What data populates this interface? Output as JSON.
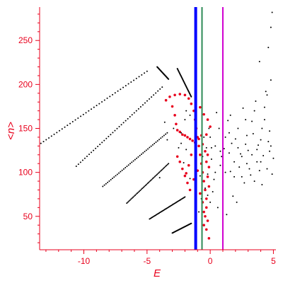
{
  "chart_data": {
    "type": "scatter",
    "title": "",
    "xlabel": "E",
    "ylabel": "<n>",
    "xlim": [
      -13.5,
      5.2
    ],
    "ylim": [
      12,
      288
    ],
    "x_ticks": [
      -10,
      -5,
      0,
      5
    ],
    "y_ticks": [
      50,
      100,
      150,
      200,
      250
    ],
    "grid": false,
    "colors": {
      "axes": "#e8001c",
      "black_points": "#000000",
      "red_points": "#e8001c",
      "line_blue": "#0000ff",
      "line_green": "#2e8b57",
      "line_magenta": "#d000d0"
    },
    "vertical_lines": [
      {
        "x": -1.15,
        "color": "#0000ff"
      },
      {
        "x": -0.65,
        "color": "#2e8b57"
      },
      {
        "x": 1.0,
        "color": "#d000d0"
      }
    ],
    "series": [
      {
        "color": "#000000",
        "kind": "segments",
        "segments": [
          {
            "x0": -13.4,
            "y0": 133,
            "x1": -5.0,
            "y1": 215
          },
          {
            "x0": -10.6,
            "y0": 107,
            "x1": -3.8,
            "y1": 197
          },
          {
            "x0": -8.5,
            "y0": 84,
            "x1": -3.4,
            "y1": 145
          },
          {
            "x0": -6.6,
            "y0": 65,
            "x1": -3.3,
            "y1": 110
          },
          {
            "x0": -4.8,
            "y0": 47,
            "x1": -2.0,
            "y1": 72
          },
          {
            "x0": -3.0,
            "y0": 31,
            "x1": -1.5,
            "y1": 42
          },
          {
            "x0": -4.2,
            "y0": 220,
            "x1": -3.3,
            "y1": 206
          },
          {
            "x0": -2.6,
            "y0": 218,
            "x1": -1.5,
            "y1": 186
          }
        ]
      },
      {
        "color": "#000000",
        "kind": "cloud",
        "points": [
          [
            0.1,
            115
          ],
          [
            0.4,
            130
          ],
          [
            0.8,
            108
          ],
          [
            1.2,
            140
          ],
          [
            1.5,
            122
          ],
          [
            1.9,
            95
          ],
          [
            2.2,
            150
          ],
          [
            2.5,
            118
          ],
          [
            2.8,
            132
          ],
          [
            3.1,
            104
          ],
          [
            3.4,
            144
          ],
          [
            3.7,
            126
          ],
          [
            4.0,
            112
          ],
          [
            4.3,
            160
          ],
          [
            4.6,
            135
          ],
          [
            4.9,
            98
          ],
          [
            0.3,
            92
          ],
          [
            0.7,
            150
          ],
          [
            1.1,
            127
          ],
          [
            1.6,
            101
          ],
          [
            2.0,
            138
          ],
          [
            2.4,
            121
          ],
          [
            2.9,
            110
          ],
          [
            3.3,
            158
          ],
          [
            3.8,
            131
          ],
          [
            4.2,
            119
          ],
          [
            4.7,
            147
          ],
          [
            5.0,
            116
          ],
          [
            0.5,
            168
          ],
          [
            1.4,
            159
          ],
          [
            2.6,
            173
          ],
          [
            3.6,
            181
          ],
          [
            4.4,
            192
          ],
          [
            4.8,
            205
          ],
          [
            3.9,
            226
          ],
          [
            4.6,
            242
          ],
          [
            4.9,
            282
          ],
          [
            4.8,
            265
          ],
          [
            4.5,
            188
          ],
          [
            0.2,
            78
          ],
          [
            1.0,
            84
          ],
          [
            1.8,
            73
          ],
          [
            2.7,
            88
          ],
          [
            3.5,
            90
          ],
          [
            4.1,
            86
          ],
          [
            0.6,
            60
          ],
          [
            1.3,
            52
          ],
          [
            2.1,
            66
          ],
          [
            0.0,
            140
          ],
          [
            0.9,
            118
          ],
          [
            1.7,
            133
          ],
          [
            2.3,
            106
          ],
          [
            3.0,
            125
          ],
          [
            3.2,
            97
          ],
          [
            4.5,
            104
          ],
          [
            0.4,
            100
          ],
          [
            1.5,
            145
          ],
          [
            2.2,
            128
          ],
          [
            2.9,
            142
          ],
          [
            3.7,
            112
          ],
          [
            4.0,
            137
          ],
          [
            4.7,
            124
          ],
          [
            0.8,
            124
          ],
          [
            1.9,
            112
          ],
          [
            3.3,
            120
          ],
          [
            4.1,
            150
          ],
          [
            2.5,
            95
          ],
          [
            1.2,
            100
          ],
          [
            0.1,
            128
          ],
          [
            3.9,
            102
          ],
          [
            4.8,
            130
          ],
          [
            2.8,
            160
          ],
          [
            1.6,
            165
          ],
          [
            3.5,
            170
          ],
          [
            4.3,
            174
          ]
        ]
      },
      {
        "color": "#e8001c",
        "kind": "cloud",
        "points": [
          [
            -3.5,
            182
          ],
          [
            -3.2,
            186
          ],
          [
            -2.8,
            188
          ],
          [
            -2.4,
            189
          ],
          [
            -2.0,
            188
          ],
          [
            -1.7,
            184
          ],
          [
            -1.5,
            178
          ],
          [
            -1.3,
            170
          ],
          [
            -1.2,
            160
          ],
          [
            -1.1,
            150
          ],
          [
            -1.0,
            140
          ],
          [
            -0.9,
            130
          ],
          [
            -0.8,
            120
          ],
          [
            -0.7,
            110
          ],
          [
            -0.6,
            100
          ],
          [
            -0.5,
            90
          ],
          [
            -0.4,
            80
          ],
          [
            -0.3,
            70
          ],
          [
            -0.3,
            60
          ],
          [
            -0.4,
            50
          ],
          [
            -0.5,
            40
          ],
          [
            -3.0,
            175
          ],
          [
            -2.8,
            165
          ],
          [
            -2.7,
            155
          ],
          [
            -2.6,
            148
          ],
          [
            -2.4,
            146
          ],
          [
            -2.2,
            143
          ],
          [
            -2.0,
            142
          ],
          [
            -1.8,
            140
          ],
          [
            -1.6,
            138
          ],
          [
            -1.4,
            136
          ],
          [
            -1.2,
            134
          ],
          [
            -0.9,
            138
          ],
          [
            -0.7,
            142
          ],
          [
            -0.6,
            132
          ],
          [
            -0.3,
            143
          ],
          [
            -0.2,
            120
          ],
          [
            -0.1,
            106
          ],
          [
            -0.2,
            95
          ],
          [
            -0.1,
            84
          ],
          [
            -0.3,
            112
          ],
          [
            -0.4,
            124
          ],
          [
            -2.6,
            118
          ],
          [
            -2.4,
            112
          ],
          [
            -2.2,
            104
          ],
          [
            -2.0,
            96
          ],
          [
            -1.8,
            88
          ],
          [
            -1.6,
            80
          ],
          [
            -1.5,
            120
          ],
          [
            -1.7,
            108
          ],
          [
            -1.9,
            99
          ],
          [
            -1.3,
            92
          ],
          [
            -1.0,
            102
          ],
          [
            -0.8,
            76
          ],
          [
            -0.6,
            66
          ],
          [
            -0.5,
            55
          ],
          [
            -0.2,
            45
          ],
          [
            -0.3,
            35
          ],
          [
            -0.1,
            25
          ],
          [
            0.0,
            152
          ],
          [
            -0.2,
            160
          ],
          [
            -0.5,
            166
          ],
          [
            -0.8,
            174
          ]
        ]
      },
      {
        "color": "#000000",
        "kind": "cloud",
        "points": [
          [
            -2.9,
            150
          ],
          [
            -2.3,
            145
          ],
          [
            -2.0,
            160
          ],
          [
            -1.6,
            165
          ],
          [
            -1.9,
            170
          ],
          [
            -3.6,
            157
          ],
          [
            -2.5,
            128
          ],
          [
            -0.5,
            140
          ],
          [
            -0.1,
            150
          ],
          [
            -0.4,
            82
          ],
          [
            -0.2,
            98
          ],
          [
            -0.6,
            118
          ],
          [
            -0.3,
            128
          ],
          [
            -0.8,
            96
          ],
          [
            -0.7,
            70
          ],
          [
            -0.9,
            55
          ],
          [
            -1.1,
            60
          ],
          [
            -0.2,
            74
          ],
          [
            0.0,
            66
          ],
          [
            -1.6,
            93
          ],
          [
            -2.1,
            111
          ],
          [
            -3.4,
            137
          ],
          [
            -4.0,
            94
          ],
          [
            -1.9,
            126
          ],
          [
            -2.3,
            133
          ]
        ]
      }
    ]
  }
}
